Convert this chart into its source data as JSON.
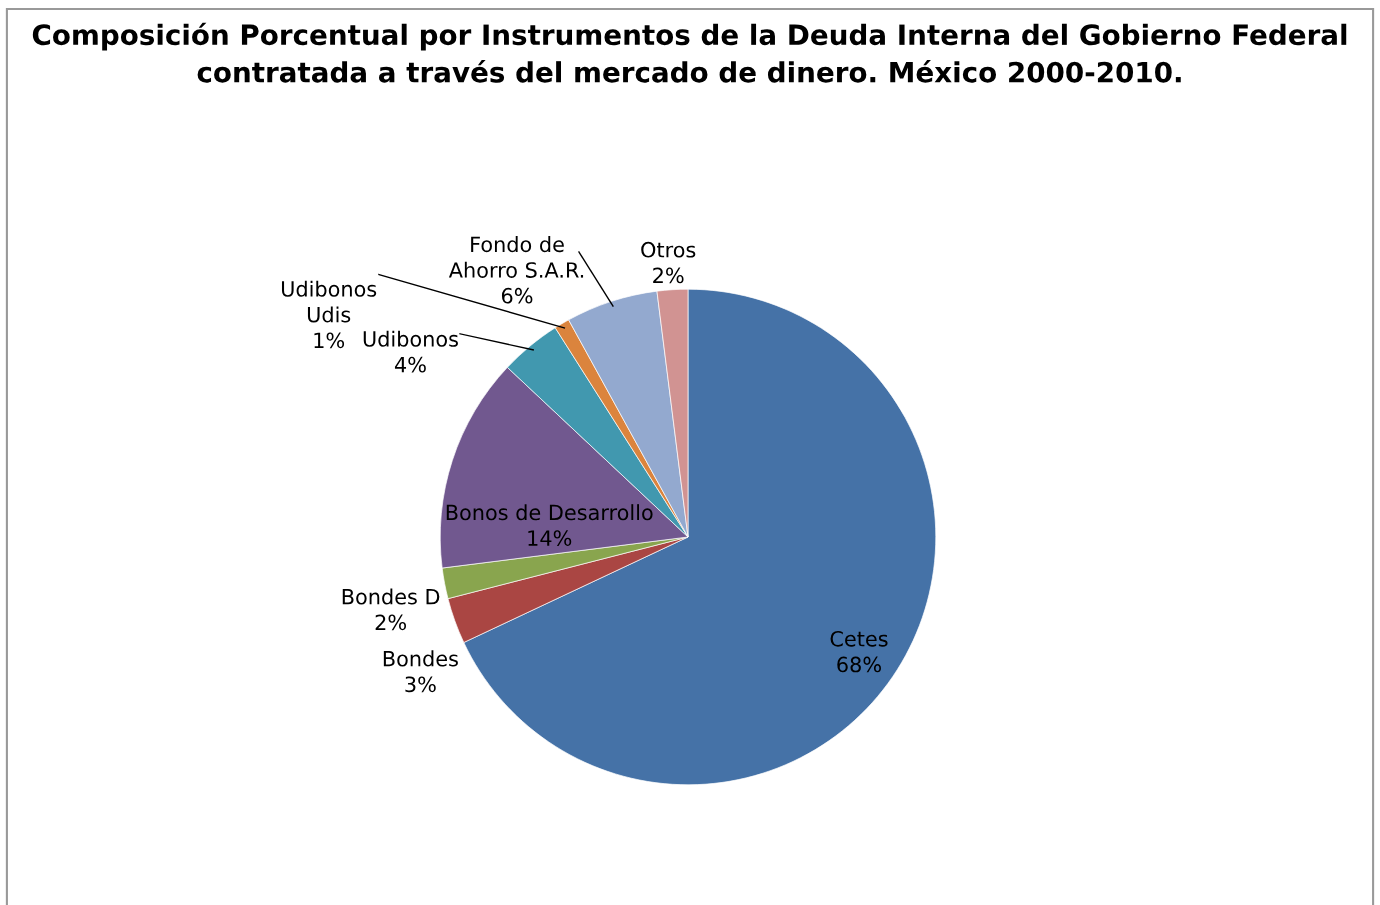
{
  "chart_data": {
    "type": "pie",
    "title": "Composición Porcentual por Instrumentos de la Deuda Interna del Gobierno Federal contratada a través del mercado de dinero. México 2000-2010.",
    "categories": [
      "Cetes",
      "Bondes",
      "Bondes D",
      "Bonos de Desarrollo",
      "Udibonos",
      "Udibonos\nUdis",
      "Fondo de\nAhorro S.A.R.",
      "Otros"
    ],
    "values": [
      68,
      3,
      2,
      14,
      4,
      1,
      6,
      2
    ],
    "value_labels": [
      "68%",
      "3%",
      "2%",
      "14%",
      "4%",
      "1%",
      "6%",
      "2%"
    ],
    "colors": [
      "#4572a7",
      "#aa4643",
      "#89a54e",
      "#71588f",
      "#4198af",
      "#db843d",
      "#93a9cf",
      "#d19392"
    ],
    "data_labels": true,
    "legend": false
  }
}
